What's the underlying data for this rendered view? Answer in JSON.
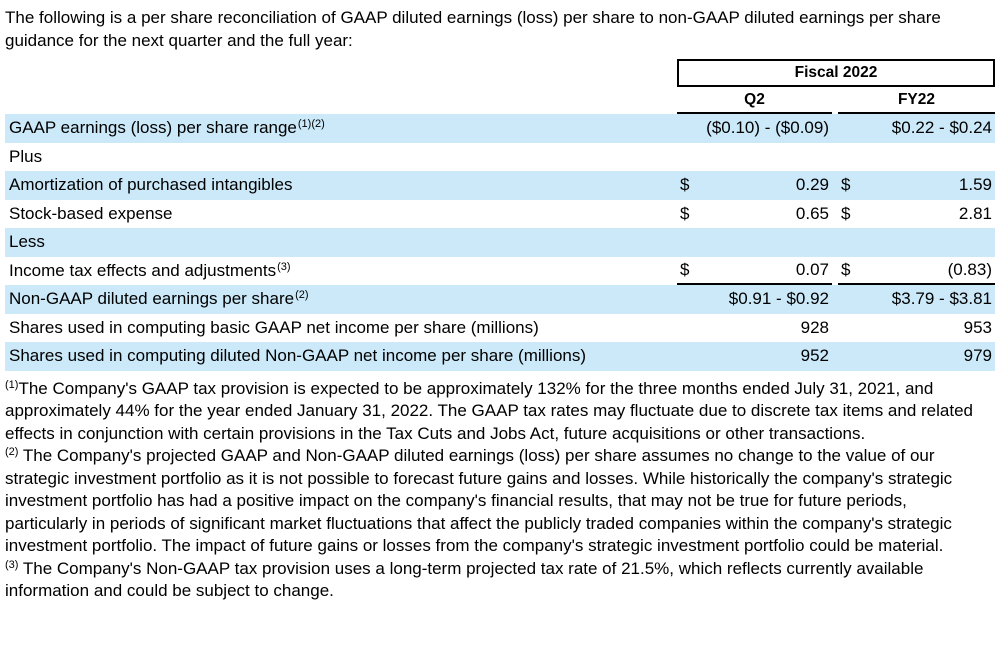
{
  "intro": "The following is a per share reconciliation of GAAP diluted earnings (loss) per share to non-GAAP diluted earnings per share guidance for the next quarter and the full year:",
  "table": {
    "period_header": "Fiscal 2022",
    "columns": [
      "Q2",
      "FY22"
    ],
    "rows": [
      {
        "label": "GAAP earnings (loss) per share range",
        "sup": "(1)(2)",
        "q2": {
          "prefix": "",
          "value": "($0.10) - ($0.09)"
        },
        "fy22": {
          "prefix": "",
          "value": "$0.22 - $0.24"
        }
      },
      {
        "label": "Plus",
        "sup": "",
        "q2": {
          "prefix": "",
          "value": ""
        },
        "fy22": {
          "prefix": "",
          "value": ""
        }
      },
      {
        "label": "Amortization of purchased intangibles",
        "sup": "",
        "q2": {
          "prefix": "$",
          "value": "0.29"
        },
        "fy22": {
          "prefix": "$",
          "value": "1.59"
        }
      },
      {
        "label": "Stock-based expense",
        "sup": "",
        "q2": {
          "prefix": "$",
          "value": "0.65"
        },
        "fy22": {
          "prefix": "$",
          "value": "2.81"
        }
      },
      {
        "label": "Less",
        "sup": "",
        "q2": {
          "prefix": "",
          "value": ""
        },
        "fy22": {
          "prefix": "",
          "value": ""
        }
      },
      {
        "label": "Income tax effects and adjustments",
        "sup": "(3)",
        "q2": {
          "prefix": "$",
          "value": "0.07"
        },
        "fy22": {
          "prefix": "$",
          "value": "(0.83)"
        }
      },
      {
        "label": "Non-GAAP diluted earnings per share",
        "sup": "(2)",
        "q2": {
          "prefix": "",
          "value": "$0.91 - $0.92"
        },
        "fy22": {
          "prefix": "",
          "value": "$3.79 - $3.81"
        }
      },
      {
        "label": "Shares used in computing basic GAAP net income per share (millions)",
        "sup": "",
        "q2": {
          "prefix": "",
          "value": "928"
        },
        "fy22": {
          "prefix": "",
          "value": "953"
        }
      },
      {
        "label": "Shares used in computing diluted Non-GAAP net income per share (millions)",
        "sup": "",
        "q2": {
          "prefix": "",
          "value": "952"
        },
        "fy22": {
          "prefix": "",
          "value": "979"
        }
      }
    ]
  },
  "footnotes": [
    {
      "marker": "(1)",
      "text": "The Company's GAAP tax provision is expected to be approximately 132% for the three months ended July 31, 2021, and approximately 44% for the year ended January 31, 2022. The GAAP tax rates may fluctuate due to discrete tax items and related effects in conjunction with certain provisions in the Tax Cuts and Jobs Act, future acquisitions or other transactions."
    },
    {
      "marker": "(2)",
      "text": " The Company's projected GAAP and Non-GAAP diluted earnings (loss) per share assumes no change to the value of our strategic investment portfolio as it is not possible to forecast future gains and losses. While historically the company's strategic investment portfolio has had a positive impact on the company's financial results, that may not be true for future periods, particularly in periods of significant market fluctuations that affect the publicly traded companies within the company's strategic investment portfolio. The impact of future gains or losses from the company's strategic investment portfolio could be material."
    },
    {
      "marker": "(3)",
      "text": " The Company's Non-GAAP tax provision uses a long-term projected tax rate of 21.5%, which reflects currently available information and could be subject to change."
    }
  ],
  "colors": {
    "row_highlight": "#cbe9f9",
    "text": "#000000",
    "rule": "#000000"
  }
}
